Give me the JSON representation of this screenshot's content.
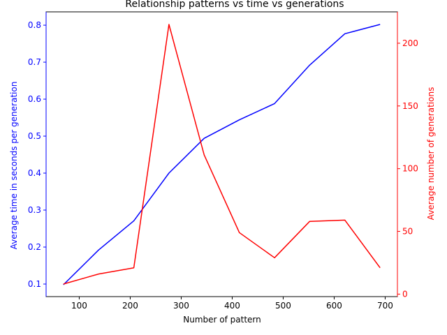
{
  "chart_data": {
    "type": "line",
    "title": "Relationship patterns vs time vs generations",
    "xlabel": "Number of pattern",
    "ylabel_left": "Average time in seconds per generation",
    "ylabel_right": "Average number of generations",
    "x": [
      69,
      138,
      207,
      276,
      345,
      414,
      483,
      552,
      621,
      690
    ],
    "xlim": [
      35,
      724
    ],
    "xticks": [
      "100",
      "200",
      "300",
      "400",
      "500",
      "600",
      "700"
    ],
    "xtick_values": [
      100,
      200,
      300,
      400,
      500,
      600,
      700
    ],
    "ylim_left": [
      0.066,
      0.836
    ],
    "yticks_left": [
      "0.1",
      "0.2",
      "0.3",
      "0.4",
      "0.5",
      "0.6",
      "0.7",
      "0.8"
    ],
    "ytick_values_left": [
      0.1,
      0.2,
      0.3,
      0.4,
      0.5,
      0.6,
      0.7,
      0.8
    ],
    "ylim_right": [
      -2,
      225
    ],
    "yticks_right": [
      "0",
      "50",
      "100",
      "150",
      "200"
    ],
    "ytick_values_right": [
      0,
      50,
      100,
      150,
      200
    ],
    "grid": false,
    "series": [
      {
        "axis": "left",
        "color": "#0000ff",
        "values": [
          0.098,
          0.192,
          0.271,
          0.4,
          0.494,
          0.544,
          0.588,
          0.692,
          0.777,
          0.802
        ]
      },
      {
        "axis": "right",
        "color": "#ff0000",
        "values": [
          8,
          16,
          21,
          215,
          111,
          49,
          29,
          58,
          59,
          21
        ]
      }
    ]
  }
}
